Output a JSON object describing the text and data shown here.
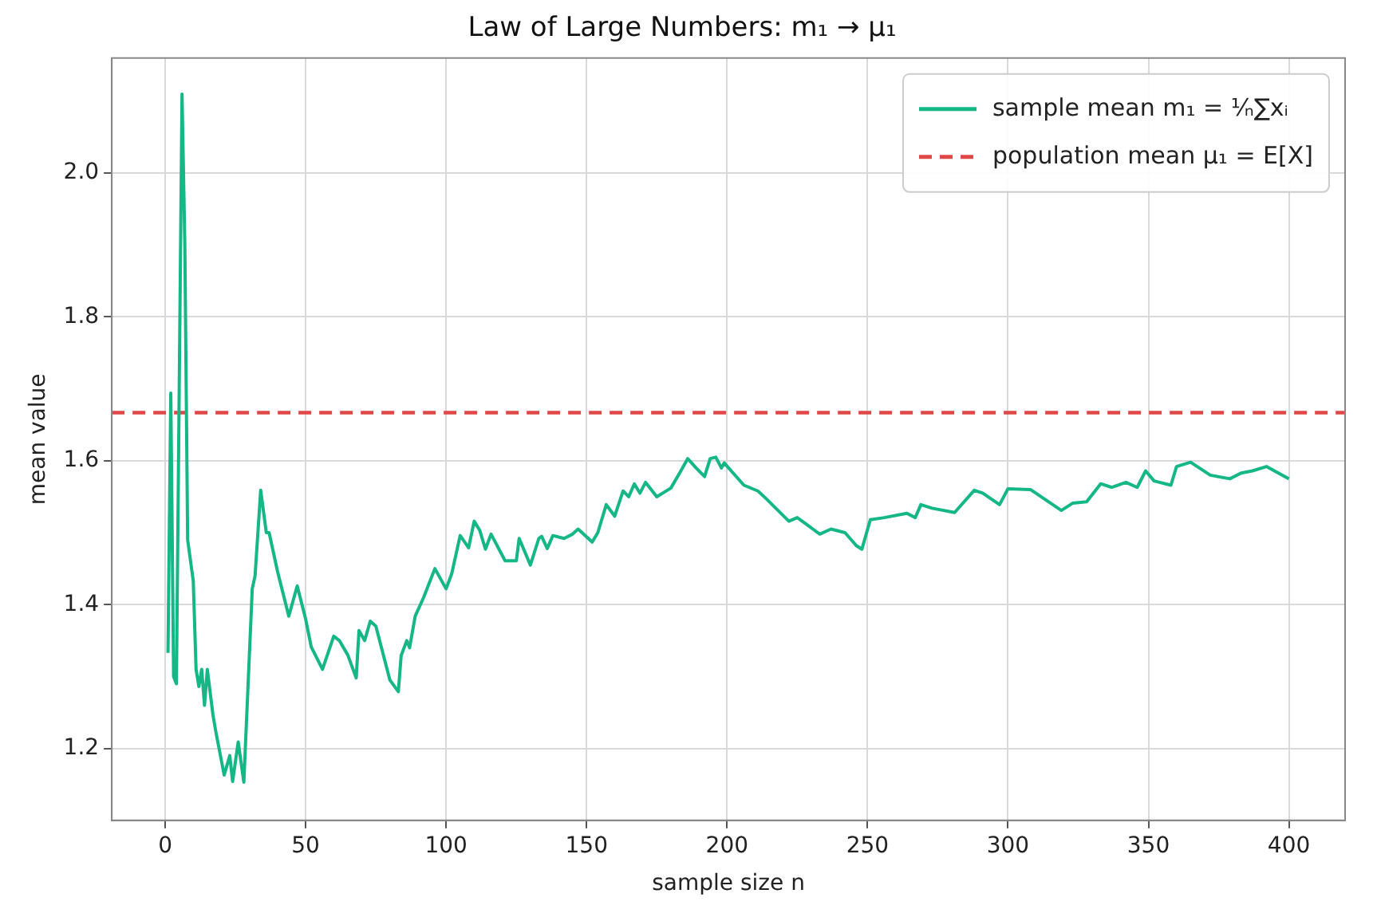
{
  "chart_data": {
    "type": "line",
    "title": "Law of Large Numbers: m₁ → μ₁",
    "xlabel": "sample size n",
    "ylabel": "mean value",
    "series": [
      {
        "name": "sample mean m₁ = ¹⁄ₙ∑xᵢ",
        "color": "#14b785",
        "x": [
          1,
          2,
          3,
          4,
          5,
          6,
          7,
          8,
          10,
          11,
          12,
          13,
          14,
          15,
          17,
          18,
          21,
          23,
          24,
          26,
          28,
          31,
          32,
          34,
          36,
          37,
          40,
          44,
          47,
          50,
          52,
          56,
          60,
          62,
          65,
          68,
          69,
          71,
          73,
          75,
          80,
          83,
          84,
          86,
          87,
          89,
          92,
          96,
          100,
          102,
          105,
          108,
          110,
          112,
          114,
          116,
          121,
          125,
          126,
          130,
          133,
          134,
          136,
          138,
          142,
          145,
          147,
          152,
          154,
          157,
          160,
          163,
          165,
          167,
          169,
          171,
          175,
          180,
          183,
          186,
          189,
          192,
          194,
          196,
          198,
          199,
          206,
          211,
          214,
          222,
          225,
          233,
          237,
          242,
          246,
          248,
          251,
          256,
          264,
          267,
          269,
          273,
          281,
          288,
          291,
          297,
          300,
          308,
          319,
          323,
          328,
          333,
          337,
          342,
          346,
          349,
          352,
          358,
          360,
          365,
          372,
          379,
          383,
          387,
          392,
          400
        ],
        "values": [
          1.333,
          1.694,
          1.3,
          1.29,
          1.7,
          2.11,
          1.9,
          1.49,
          1.433,
          1.31,
          1.286,
          1.31,
          1.26,
          1.31,
          1.247,
          1.224,
          1.163,
          1.19,
          1.154,
          1.209,
          1.153,
          1.422,
          1.44,
          1.559,
          1.5,
          1.5,
          1.446,
          1.384,
          1.426,
          1.38,
          1.341,
          1.31,
          1.356,
          1.35,
          1.33,
          1.298,
          1.364,
          1.35,
          1.377,
          1.37,
          1.295,
          1.279,
          1.329,
          1.35,
          1.34,
          1.384,
          1.41,
          1.45,
          1.422,
          1.443,
          1.496,
          1.479,
          1.516,
          1.503,
          1.477,
          1.498,
          1.461,
          1.461,
          1.492,
          1.455,
          1.492,
          1.495,
          1.478,
          1.496,
          1.492,
          1.498,
          1.505,
          1.487,
          1.5,
          1.539,
          1.523,
          1.558,
          1.55,
          1.568,
          1.555,
          1.57,
          1.55,
          1.562,
          1.582,
          1.603,
          1.59,
          1.578,
          1.603,
          1.605,
          1.59,
          1.597,
          1.566,
          1.558,
          1.547,
          1.516,
          1.521,
          1.498,
          1.505,
          1.5,
          1.482,
          1.477,
          1.518,
          1.521,
          1.527,
          1.521,
          1.539,
          1.534,
          1.528,
          1.559,
          1.555,
          1.539,
          1.561,
          1.56,
          1.531,
          1.541,
          1.543,
          1.568,
          1.563,
          1.57,
          1.563,
          1.586,
          1.572,
          1.566,
          1.592,
          1.598,
          1.58,
          1.575,
          1.583,
          1.586,
          1.592,
          1.575
        ]
      }
    ],
    "ref_lines": [
      {
        "axis": "y",
        "value": 1.667,
        "label": "population mean μ₁ = E[X]",
        "color": "#e04848",
        "line_style": "dashed"
      }
    ],
    "xlim": [
      -19,
      420
    ],
    "ylim": [
      1.1,
      2.16
    ],
    "xticks": [
      0,
      50,
      100,
      150,
      200,
      250,
      300,
      350,
      400
    ],
    "yticks": [
      1.2,
      1.4,
      1.6,
      1.8,
      {
        "value": 2,
        "label": "2.0"
      }
    ],
    "grid": true,
    "legend": "top right",
    "marker": "none",
    "line_style": "solid"
  }
}
